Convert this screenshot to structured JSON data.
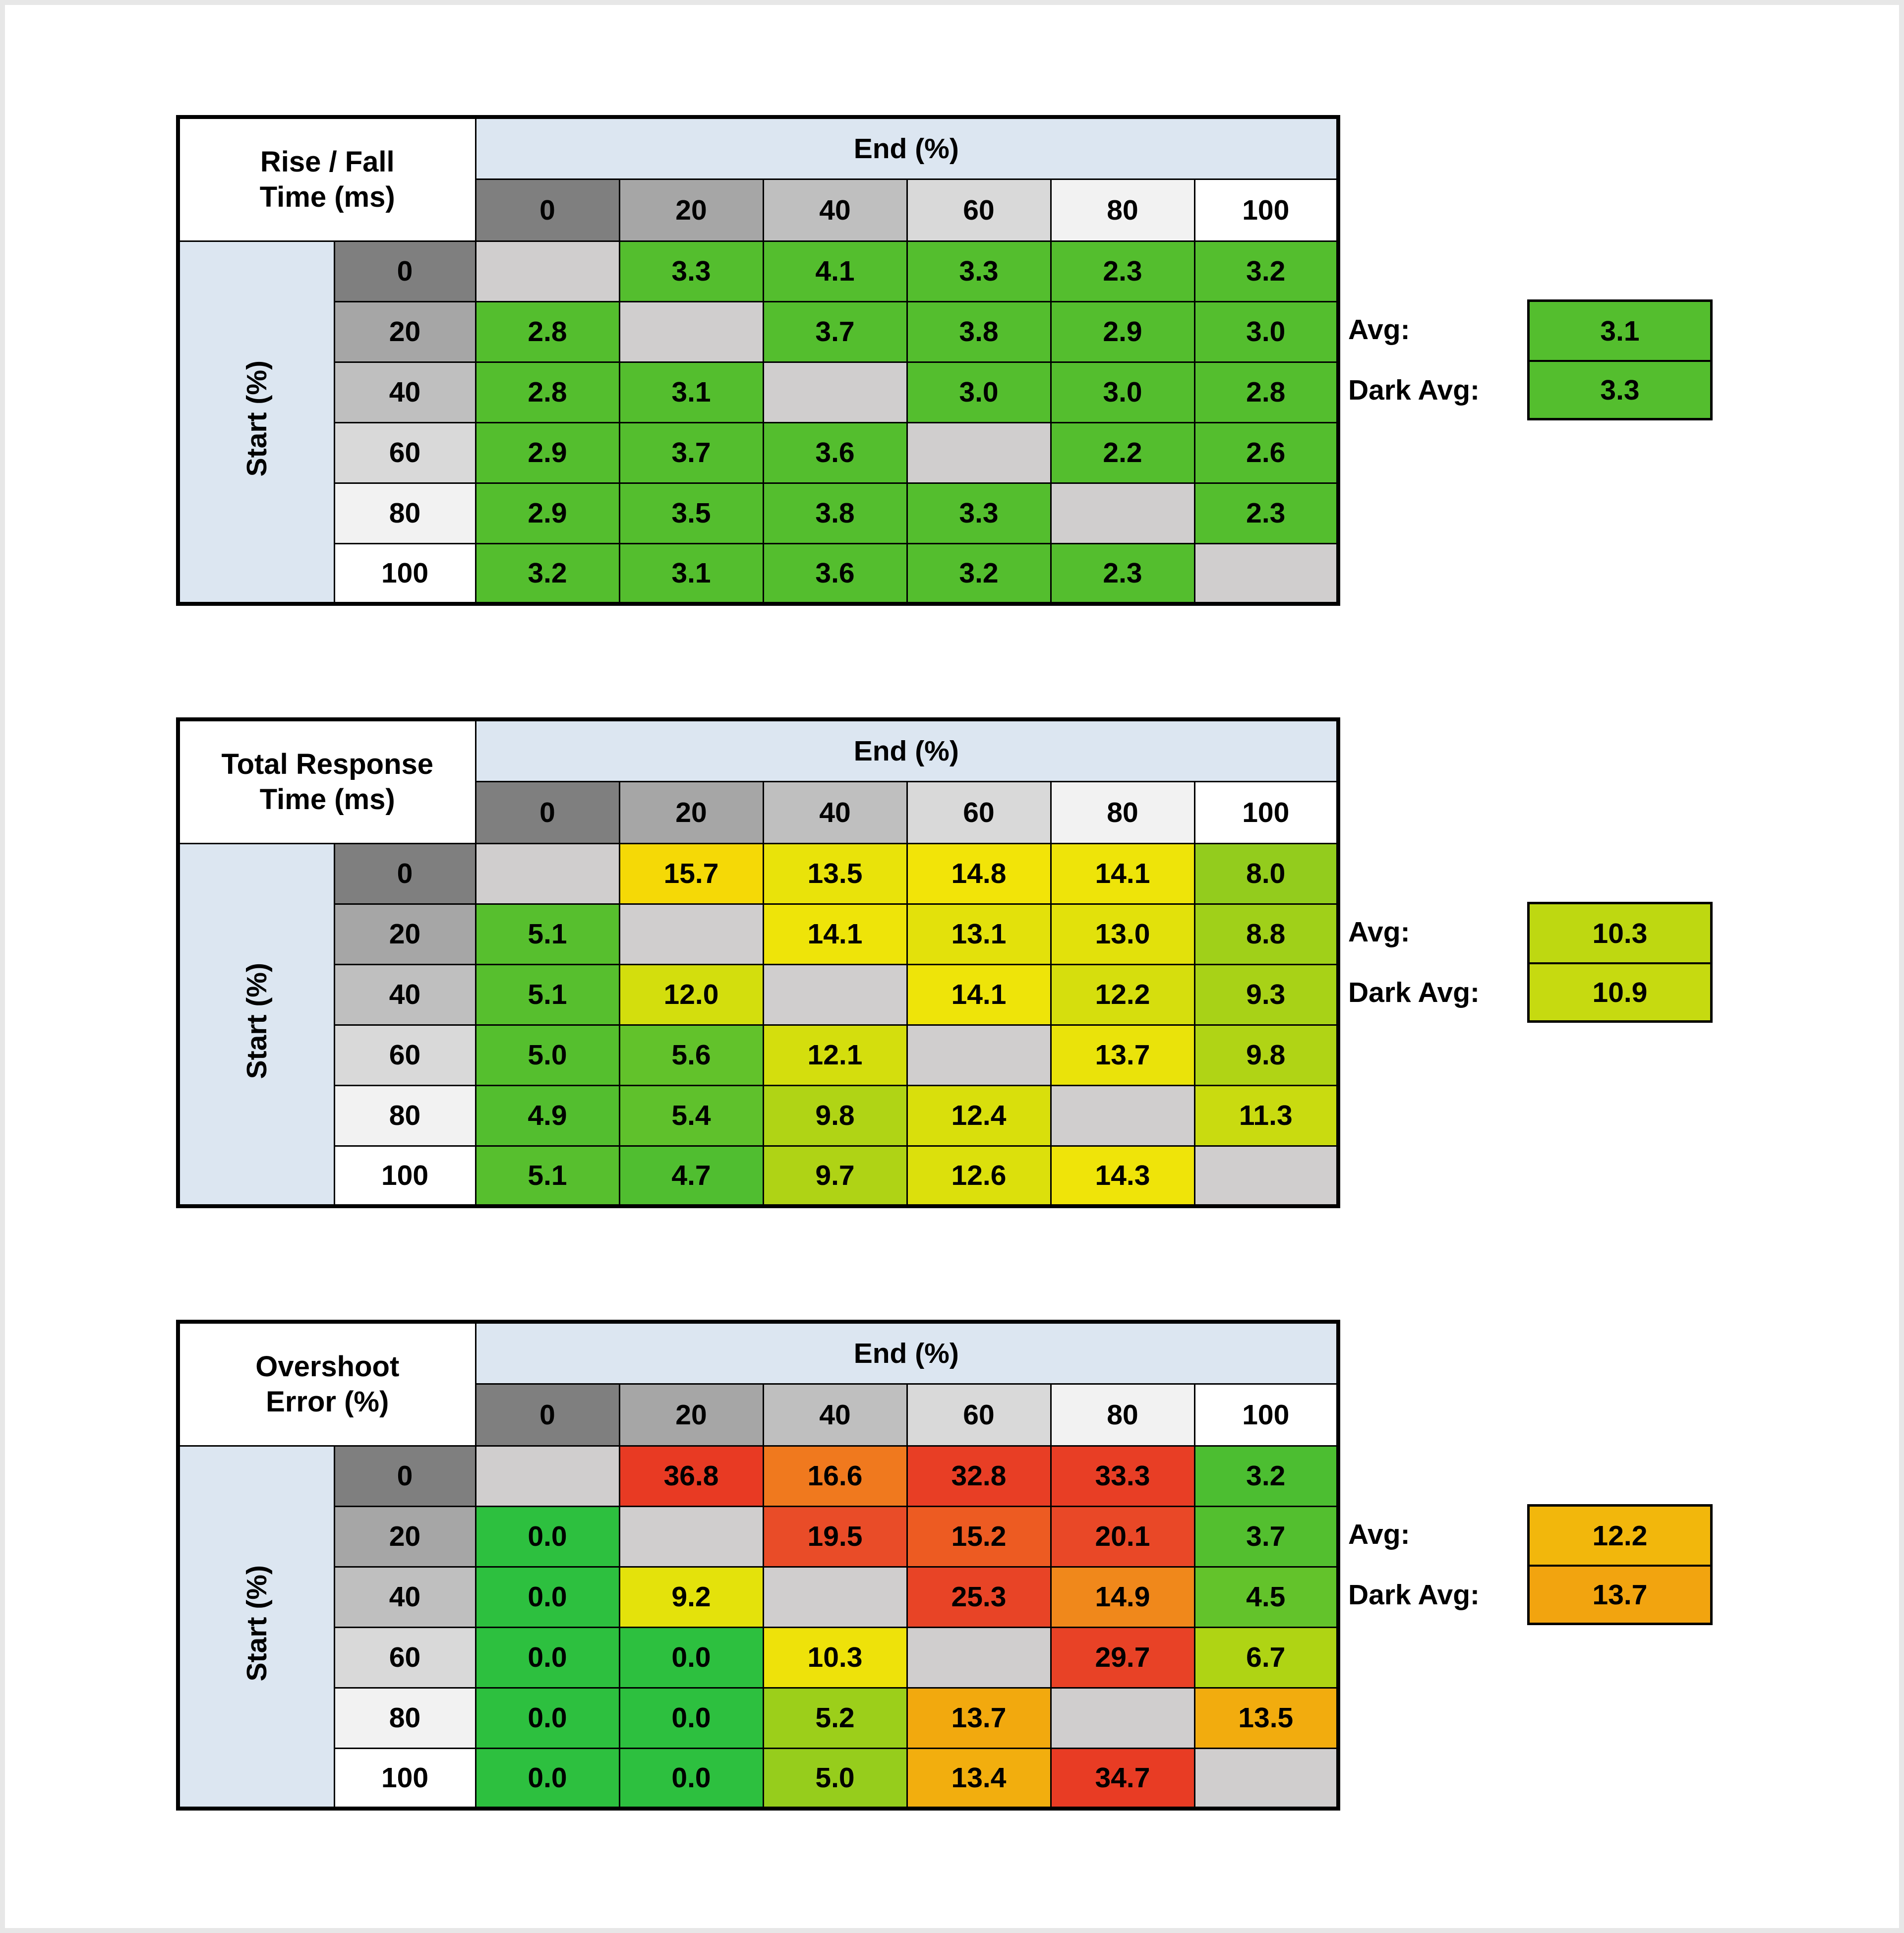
{
  "style": {
    "header_bg": "#DCE6F1",
    "gray_scale": [
      "#7F7F7F",
      "#A6A6A6",
      "#BFBFBF",
      "#D9D9D9",
      "#F2F2F2",
      "#FFFFFF"
    ],
    "diagonal_bg": "#D0CECE",
    "border_color": "#000000",
    "page_frame": "#E7E7E7",
    "green": "#54BE2E",
    "yellow": "#EEE409",
    "orange": "#F2A90E",
    "red": "#E83E25"
  },
  "chart_data": [
    {
      "type": "heatmap",
      "id": "rise-fall-time",
      "title_line1": "Rise / Fall",
      "title_line2": "Time (ms)",
      "corner_header": "End (%)",
      "row_axis_label": "Start (%)",
      "columns": [
        "0",
        "20",
        "40",
        "60",
        "80",
        "100"
      ],
      "rows": [
        "0",
        "20",
        "40",
        "60",
        "80",
        "100"
      ],
      "values": [
        [
          null,
          "3.3",
          "4.1",
          "3.3",
          "2.3",
          "3.2"
        ],
        [
          "2.8",
          null,
          "3.7",
          "3.8",
          "2.9",
          "3.0"
        ],
        [
          "2.8",
          "3.1",
          null,
          "3.0",
          "3.0",
          "2.8"
        ],
        [
          "2.9",
          "3.7",
          "3.6",
          null,
          "2.2",
          "2.6"
        ],
        [
          "2.9",
          "3.5",
          "3.8",
          "3.3",
          null,
          "2.3"
        ],
        [
          "3.2",
          "3.1",
          "3.6",
          "3.2",
          "2.3",
          null
        ]
      ],
      "cell_colors": [
        [
          null,
          "#54BE2E",
          "#54BE2E",
          "#54BE2E",
          "#54BE2E",
          "#54BE2E"
        ],
        [
          "#54BE2E",
          null,
          "#54BE2E",
          "#54BE2E",
          "#54BE2E",
          "#54BE2E"
        ],
        [
          "#54BE2E",
          "#54BE2E",
          null,
          "#54BE2E",
          "#54BE2E",
          "#54BE2E"
        ],
        [
          "#54BE2E",
          "#54BE2E",
          "#54BE2E",
          null,
          "#54BE2E",
          "#54BE2E"
        ],
        [
          "#54BE2E",
          "#54BE2E",
          "#54BE2E",
          "#54BE2E",
          null,
          "#54BE2E"
        ],
        [
          "#54BE2E",
          "#54BE2E",
          "#54BE2E",
          "#54BE2E",
          "#54BE2E",
          null
        ]
      ],
      "avg_label": "Avg:",
      "avg": "3.1",
      "avg_color": "#54BE2E",
      "dark_avg_label": "Dark Avg:",
      "dark_avg": "3.3",
      "dark_avg_color": "#54BE2E"
    },
    {
      "type": "heatmap",
      "id": "total-response-time",
      "title_line1": "Total Response",
      "title_line2": "Time (ms)",
      "corner_header": "End (%)",
      "row_axis_label": "Start (%)",
      "columns": [
        "0",
        "20",
        "40",
        "60",
        "80",
        "100"
      ],
      "rows": [
        "0",
        "20",
        "40",
        "60",
        "80",
        "100"
      ],
      "values": [
        [
          null,
          "15.7",
          "13.5",
          "14.8",
          "14.1",
          "8.0"
        ],
        [
          "5.1",
          null,
          "14.1",
          "13.1",
          "13.0",
          "8.8"
        ],
        [
          "5.1",
          "12.0",
          null,
          "14.1",
          "12.2",
          "9.3"
        ],
        [
          "5.0",
          "5.6",
          "12.1",
          null,
          "13.7",
          "9.8"
        ],
        [
          "4.9",
          "5.4",
          "9.8",
          "12.4",
          null,
          "11.3"
        ],
        [
          "5.1",
          "4.7",
          "9.7",
          "12.6",
          "14.3",
          null
        ]
      ],
      "cell_colors": [
        [
          null,
          "#F5D906",
          "#E9E30A",
          "#F2E408",
          "#EEE409",
          "#93CC1D"
        ],
        [
          "#57BF2E",
          null,
          "#EEE409",
          "#E3E10B",
          "#E2E10B",
          "#A0D019"
        ],
        [
          "#57BF2E",
          "#D3DE0D",
          null,
          "#EEE409",
          "#D6DE0D",
          "#A8D217"
        ],
        [
          "#55BF2E",
          "#62C22B",
          "#D4DE0D",
          null,
          "#EAE30A",
          "#B0D415"
        ],
        [
          "#53BE2F",
          "#5FC12C",
          "#B0D415",
          "#D9DF0C",
          null,
          "#C9DB10"
        ],
        [
          "#57BF2E",
          "#50BE30",
          "#AFD315",
          "#DCE00C",
          "#EFE409",
          null
        ]
      ],
      "avg_label": "Avg:",
      "avg": "10.3",
      "avg_color": "#BED811",
      "dark_avg_label": "Dark Avg:",
      "dark_avg": "10.9",
      "dark_avg_color": "#C6DA10"
    },
    {
      "type": "heatmap",
      "id": "overshoot-error",
      "title_line1": "Overshoot",
      "title_line2": "Error (%)",
      "corner_header": "End (%)",
      "row_axis_label": "Start (%)",
      "columns": [
        "0",
        "20",
        "40",
        "60",
        "80",
        "100"
      ],
      "rows": [
        "0",
        "20",
        "40",
        "60",
        "80",
        "100"
      ],
      "values": [
        [
          null,
          "36.8",
          "16.6",
          "32.8",
          "33.3",
          "3.2"
        ],
        [
          "0.0",
          null,
          "19.5",
          "15.2",
          "20.1",
          "3.7"
        ],
        [
          "0.0",
          "9.2",
          null,
          "25.3",
          "14.9",
          "4.5"
        ],
        [
          "0.0",
          "0.0",
          "10.3",
          null,
          "29.7",
          "6.7"
        ],
        [
          "0.0",
          "0.0",
          "5.2",
          "13.7",
          null,
          "13.5"
        ],
        [
          "0.0",
          "0.0",
          "5.0",
          "13.4",
          "34.7",
          null
        ]
      ],
      "cell_colors": [
        [
          null,
          "#E83A23",
          "#F0791E",
          "#E83E25",
          "#E83E25",
          "#4CBE31"
        ],
        [
          "#2DC03F",
          null,
          "#E94C28",
          "#ED5B22",
          "#E94827",
          "#53BF2F"
        ],
        [
          "#2DC03F",
          "#E4E20B",
          null,
          "#E84426",
          "#F0881B",
          "#63C32B"
        ],
        [
          "#2DC03F",
          "#2DC03F",
          "#EEE20A",
          null,
          "#E84226",
          "#AFD414"
        ],
        [
          "#2DC03F",
          "#2DC03F",
          "#9CCF1A",
          "#F2A90E",
          null,
          "#F2AC0E"
        ],
        [
          "#2DC03F",
          "#2DC03F",
          "#96CD1C",
          "#F2AE0E",
          "#E83C24",
          null
        ]
      ],
      "avg_label": "Avg:",
      "avg": "12.2",
      "avg_color": "#F2B70C",
      "dark_avg_label": "Dark Avg:",
      "dark_avg": "13.7",
      "dark_avg_color": "#F2A40F"
    }
  ]
}
